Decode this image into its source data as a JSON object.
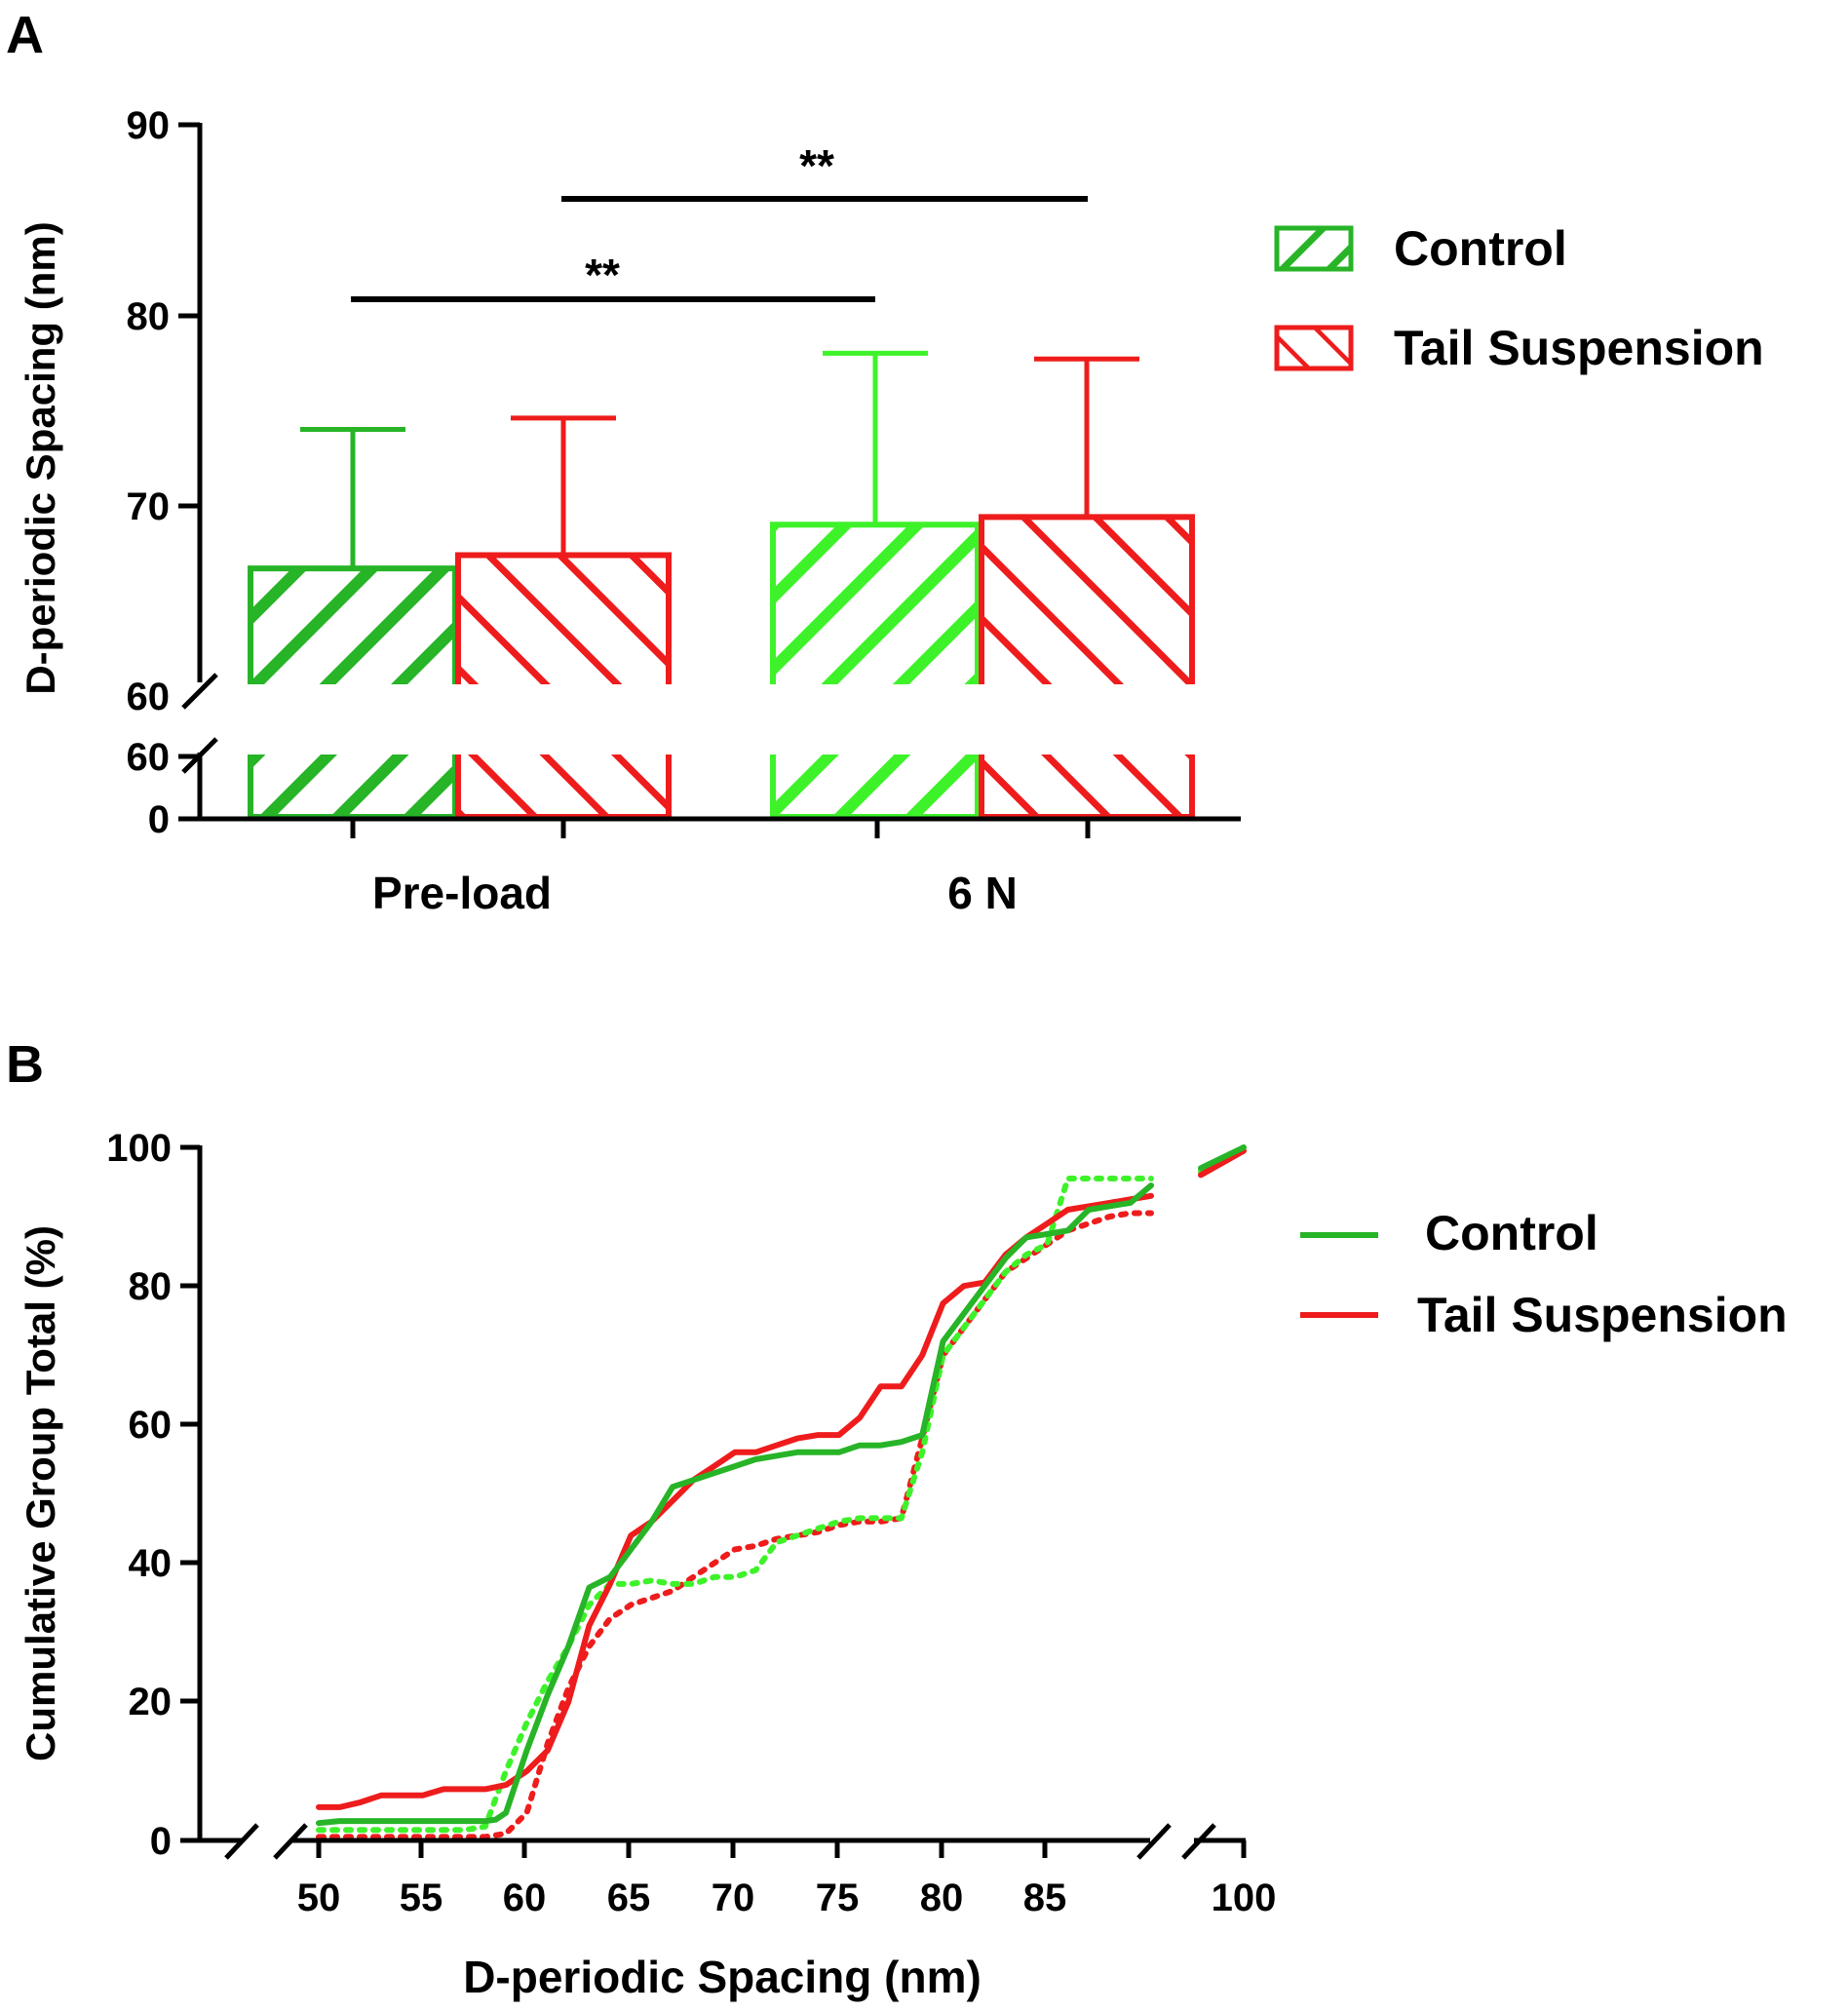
{
  "colors": {
    "control_preload": "#27b427",
    "control_6n": "#3ef22a",
    "tail": "#ee1c1c",
    "line_control": "#27b427",
    "line_control_dotted": "#3ef22a",
    "line_tail": "#ee1c1c"
  },
  "chart_data": [
    {
      "type": "bar",
      "panel_label": "A",
      "title": "",
      "xlabel": "",
      "ylabel": "D-periodic Spacing (nm)",
      "categories": [
        "Pre-load",
        "6 N"
      ],
      "series": [
        {
          "name": "Control",
          "values": [
            66.7,
            69.0
          ],
          "error_upper": [
            74.0,
            78.0
          ]
        },
        {
          "name": "Tail Suspension",
          "values": [
            67.4,
            69.4
          ],
          "error_upper": [
            74.6,
            77.7
          ]
        }
      ],
      "y_axis_upper": {
        "range": [
          60,
          90
        ],
        "ticks": [
          "60",
          "70",
          "80",
          "90"
        ]
      },
      "y_axis_lower": {
        "range": [
          0,
          60
        ],
        "ticks": [
          "0",
          "60"
        ]
      },
      "significance": [
        {
          "label": "**",
          "from": "Control Pre-load",
          "to": "Control 6 N"
        },
        {
          "label": "**",
          "from": "Tail Suspension Pre-load",
          "to": "Tail Suspension 6 N"
        }
      ],
      "legend": [
        "Control",
        "Tail Suspension"
      ],
      "legend_position": "right"
    },
    {
      "type": "line",
      "panel_label": "B",
      "title": "",
      "xlabel": "D-periodic Spacing (nm)",
      "ylabel": "Cumulative Group Total (%)",
      "ylim": [
        0,
        100
      ],
      "yticks": [
        "0",
        "20",
        "40",
        "60",
        "80",
        "100"
      ],
      "xticks": [
        "50",
        "55",
        "60",
        "65",
        "70",
        "75",
        "80",
        "85",
        "100"
      ],
      "x_break": "between 88 and 98",
      "legend": [
        "Control",
        "Tail Suspension"
      ],
      "legend_position": "right",
      "series": [
        {
          "name": "Control",
          "style": "solid",
          "x": [
            50,
            51,
            52,
            53,
            54,
            55,
            56,
            57,
            58,
            58.5,
            59,
            60,
            61,
            62,
            63,
            64,
            65,
            66,
            67,
            68,
            69,
            70,
            71,
            72,
            73,
            74,
            75,
            76,
            77,
            78,
            79,
            80,
            81,
            82,
            83,
            84,
            85,
            86,
            87,
            88,
            89,
            90
          ],
          "y": [
            2.5,
            2.8,
            2.8,
            2.8,
            2.8,
            2.8,
            2.8,
            2.8,
            2.8,
            3.0,
            4.0,
            13,
            21,
            28,
            36.5,
            38,
            42,
            46,
            51,
            52,
            53,
            54,
            55,
            55.5,
            56,
            56,
            56,
            57,
            57,
            57.5,
            58.5,
            72,
            76,
            80,
            84,
            87,
            87.5,
            88,
            91,
            91.5,
            92,
            94.5
          ]
        },
        {
          "name": "Control (dotted)",
          "style": "dotted",
          "x": [
            50,
            51,
            52,
            53,
            54,
            55,
            56,
            57,
            58,
            59,
            60,
            61,
            62,
            63,
            64,
            65,
            66,
            67,
            68,
            69,
            70,
            71,
            72,
            73,
            74,
            75,
            76,
            77,
            78,
            79,
            80,
            81,
            82,
            83,
            84,
            85,
            86,
            87,
            88,
            89,
            90
          ],
          "y": [
            1.5,
            1.5,
            1.5,
            1.5,
            1.5,
            1.5,
            1.5,
            1.5,
            2,
            10,
            17,
            23,
            28,
            34,
            37,
            37,
            37.5,
            37,
            37,
            38,
            38,
            39,
            43,
            44,
            45,
            46,
            46.5,
            46.5,
            46.5,
            56,
            70,
            74,
            78,
            82,
            84.5,
            86,
            95.5,
            95.5,
            95.5,
            95.5,
            95.5
          ]
        },
        {
          "name": "Tail Suspension",
          "style": "solid",
          "x": [
            50,
            51,
            52,
            53,
            54,
            55,
            56,
            57,
            58,
            59,
            60,
            61,
            62,
            63,
            64,
            65,
            66,
            67,
            68,
            69,
            70,
            71,
            72,
            73,
            74,
            75,
            76,
            77,
            78,
            79,
            80,
            81,
            82,
            83,
            84,
            85,
            86,
            87,
            88,
            89,
            90
          ],
          "y": [
            4.8,
            4.8,
            5.5,
            6.5,
            6.5,
            6.5,
            7.4,
            7.4,
            7.4,
            8,
            10,
            13,
            20,
            31,
            37,
            44,
            46,
            49,
            52,
            54,
            56,
            56,
            57,
            58,
            58.5,
            58.5,
            61,
            65.5,
            65.5,
            70,
            77.5,
            80,
            80.5,
            84.5,
            87,
            89,
            91,
            91.5,
            92,
            92.5,
            93
          ]
        },
        {
          "name": "Tail Suspension (dotted)",
          "style": "dotted",
          "x": [
            50,
            51,
            52,
            53,
            54,
            55,
            56,
            57,
            58,
            59,
            60,
            61,
            62,
            63,
            64,
            65,
            66,
            67,
            68,
            69,
            70,
            71,
            72,
            73,
            74,
            75,
            76,
            77,
            78,
            79,
            80,
            81,
            82,
            83,
            84,
            85,
            86,
            87,
            88,
            89,
            90
          ],
          "y": [
            0.5,
            0.5,
            0.5,
            0.5,
            0.5,
            0.5,
            0.5,
            0.5,
            0.5,
            1,
            4,
            14,
            22,
            28,
            32,
            34,
            35,
            36,
            38,
            40,
            42,
            42.5,
            43.5,
            44,
            44.5,
            45.5,
            46,
            46,
            46.5,
            58,
            70,
            74,
            78,
            82,
            84,
            86,
            88,
            89,
            90,
            90.5,
            90.5
          ]
        }
      ],
      "after_break": [
        {
          "name": "Control",
          "style": "solid",
          "x": [
            98,
            100
          ],
          "y": [
            97,
            100
          ]
        },
        {
          "name": "Control (dotted)",
          "style": "dotted",
          "x": [
            98,
            100
          ],
          "y": [
            96.5,
            99.5
          ]
        },
        {
          "name": "Tail Suspension",
          "style": "solid",
          "x": [
            98,
            100
          ],
          "y": [
            96,
            99.5
          ]
        },
        {
          "name": "Tail Suspension (dotted)",
          "style": "dotted",
          "x": [
            98,
            100
          ],
          "y": [
            96.5,
            99.5
          ]
        }
      ]
    }
  ],
  "panelA": {
    "label": "A",
    "ylabel": "D-periodic Spacing (nm)",
    "ticks_upper": [
      "60",
      "70",
      "80",
      "90"
    ],
    "ticks_lower": [
      "60",
      "0"
    ],
    "categories": [
      "Pre-load",
      "6 N"
    ],
    "sig1": "**",
    "sig2": "**",
    "legend": [
      "Control",
      "Tail Suspension"
    ]
  },
  "panelB": {
    "label": "B",
    "ylabel": "Cumulative Group Total (%)",
    "xlabel": "D-periodic Spacing (nm)",
    "yticks": [
      "0",
      "20",
      "40",
      "60",
      "80",
      "100"
    ],
    "xticks": [
      "50",
      "55",
      "60",
      "65",
      "70",
      "75",
      "80",
      "85",
      "100"
    ],
    "legend": [
      "Control",
      "Tail Suspension"
    ]
  }
}
